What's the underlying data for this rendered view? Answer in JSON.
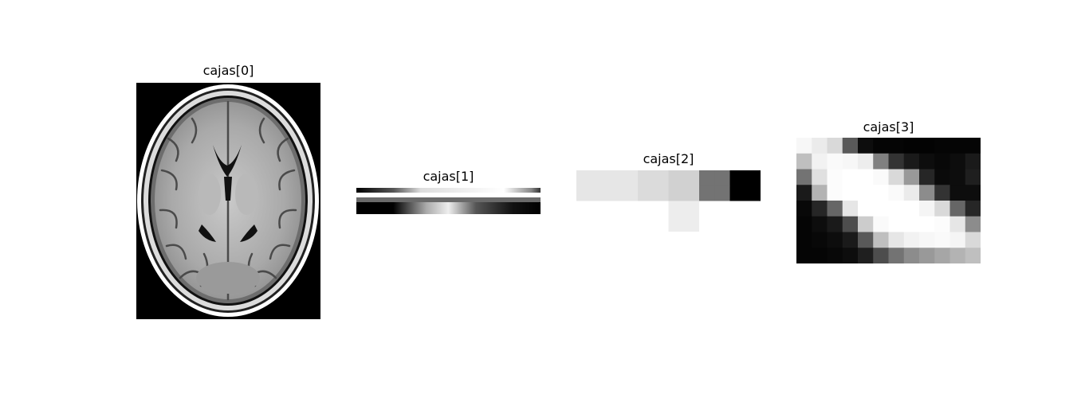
{
  "panels": [
    {
      "title": "cajas[0]"
    },
    {
      "title": "cajas[1]"
    },
    {
      "title": "cajas[2]",
      "pixels": [
        [
          0.9,
          0.9,
          0.9,
          0.9,
          0.86,
          0.86,
          0.82,
          0.82,
          0.45,
          0.45,
          0.0,
          0.0
        ],
        [
          0.9,
          0.9,
          0.9,
          0.9,
          0.86,
          0.86,
          0.82,
          0.82,
          0.45,
          0.45,
          0.0,
          0.0
        ],
        [
          1,
          1,
          1,
          1,
          1,
          1,
          0.93,
          0.93,
          1,
          1,
          1,
          1
        ],
        [
          1,
          1,
          1,
          1,
          1,
          1,
          0.93,
          0.93,
          1,
          1,
          1,
          1
        ]
      ]
    },
    {
      "title": "cajas[3]",
      "pixels": [
        [
          0.97,
          0.92,
          0.85,
          0.35,
          0.05,
          0.02,
          0.02,
          0.01,
          0.01,
          0.02,
          0.02,
          0.02
        ],
        [
          0.75,
          0.95,
          0.98,
          0.97,
          0.93,
          0.5,
          0.2,
          0.1,
          0.05,
          0.03,
          0.05,
          0.1
        ],
        [
          0.45,
          0.88,
          0.99,
          1.0,
          1.0,
          0.98,
          0.85,
          0.6,
          0.15,
          0.04,
          0.05,
          0.12
        ],
        [
          0.1,
          0.7,
          0.99,
          1.0,
          1.0,
          1.0,
          0.98,
          0.92,
          0.55,
          0.2,
          0.05,
          0.05
        ],
        [
          0.03,
          0.15,
          0.4,
          0.9,
          1.0,
          1.0,
          1.0,
          1.0,
          0.96,
          0.85,
          0.4,
          0.15
        ],
        [
          0.02,
          0.05,
          0.1,
          0.3,
          0.8,
          0.98,
          1.0,
          1.0,
          1.0,
          0.99,
          0.9,
          0.55
        ],
        [
          0.02,
          0.03,
          0.05,
          0.1,
          0.35,
          0.75,
          0.9,
          0.95,
          0.97,
          0.98,
          0.96,
          0.85
        ],
        [
          0.02,
          0.02,
          0.03,
          0.05,
          0.12,
          0.3,
          0.45,
          0.55,
          0.6,
          0.65,
          0.7,
          0.75
        ]
      ]
    }
  ]
}
